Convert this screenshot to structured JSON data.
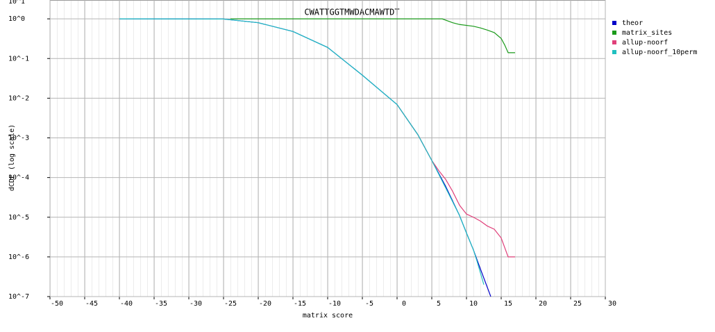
{
  "chart_data": {
    "type": "line",
    "title": "CWATTGGTMWDACMAWTDT",
    "x_label": "matrix score",
    "y_label": "dCDF (log scale)",
    "log_y": true,
    "grid": true,
    "legend": "right",
    "xlim": [
      -50,
      30
    ],
    "xticks": [
      -50,
      -45,
      -40,
      -35,
      -30,
      -25,
      -20,
      -15,
      -10,
      -5,
      0,
      5,
      10,
      15,
      20,
      25,
      30
    ],
    "ylim": [
      1e-07,
      10
    ],
    "yticks": [
      {
        "value": 1e-07,
        "label": "10^-7"
      },
      {
        "value": 1e-06,
        "label": "10^-6"
      },
      {
        "value": 1e-05,
        "label": "10^-5"
      },
      {
        "value": 0.0001,
        "label": "10^-4"
      },
      {
        "value": 0.001,
        "label": "10^-3"
      },
      {
        "value": 0.01,
        "label": "10^-2"
      },
      {
        "value": 0.1,
        "label": "10^-1"
      },
      {
        "value": 1,
        "label": "10^0"
      },
      {
        "value": 10,
        "label": "10^1"
      }
    ],
    "series": [
      {
        "name": "theor",
        "color": "#0000c8",
        "x": [
          -40,
          -25,
          -20,
          -15,
          -10,
          -5,
          0,
          3,
          5,
          7,
          9,
          10,
          11,
          12,
          13.5
        ],
        "values": [
          1,
          0.99,
          0.8,
          0.48,
          0.19,
          0.038,
          0.0069,
          0.0012,
          0.00027,
          6e-05,
          1.1e-05,
          4e-06,
          1.5e-06,
          5e-07,
          1e-07
        ]
      },
      {
        "name": "matrix_sites",
        "color": "#1a9a1a",
        "x": [
          -24,
          6.5,
          8,
          9,
          11,
          12,
          13,
          14,
          15,
          15.5,
          16,
          17
        ],
        "values": [
          1,
          1,
          0.8,
          0.72,
          0.65,
          0.59,
          0.52,
          0.45,
          0.32,
          0.22,
          0.14,
          0.14
        ]
      },
      {
        "name": "allup-noorf",
        "color": "#e0407a",
        "x": [
          0,
          3,
          5,
          6,
          7,
          8,
          9,
          10,
          11,
          12,
          13,
          14,
          15,
          16,
          17
        ],
        "values": [
          0.0069,
          0.0012,
          0.00027,
          0.00015,
          9e-05,
          4.5e-05,
          2e-05,
          1.2e-05,
          1e-05,
          8e-06,
          6e-06,
          5e-06,
          3e-06,
          1e-06,
          1e-06
        ]
      },
      {
        "name": "allup-noorf_10perm",
        "color": "#20c0c0",
        "x": [
          -40,
          -25,
          -20,
          -15,
          -10,
          -5,
          0,
          3,
          5,
          7,
          9,
          10,
          11,
          11.5,
          12.5
        ],
        "values": [
          1,
          0.99,
          0.8,
          0.48,
          0.19,
          0.038,
          0.0069,
          0.0012,
          0.00027,
          5.5e-05,
          1.1e-05,
          4e-06,
          1.5e-06,
          8e-07,
          2e-07
        ]
      }
    ]
  }
}
